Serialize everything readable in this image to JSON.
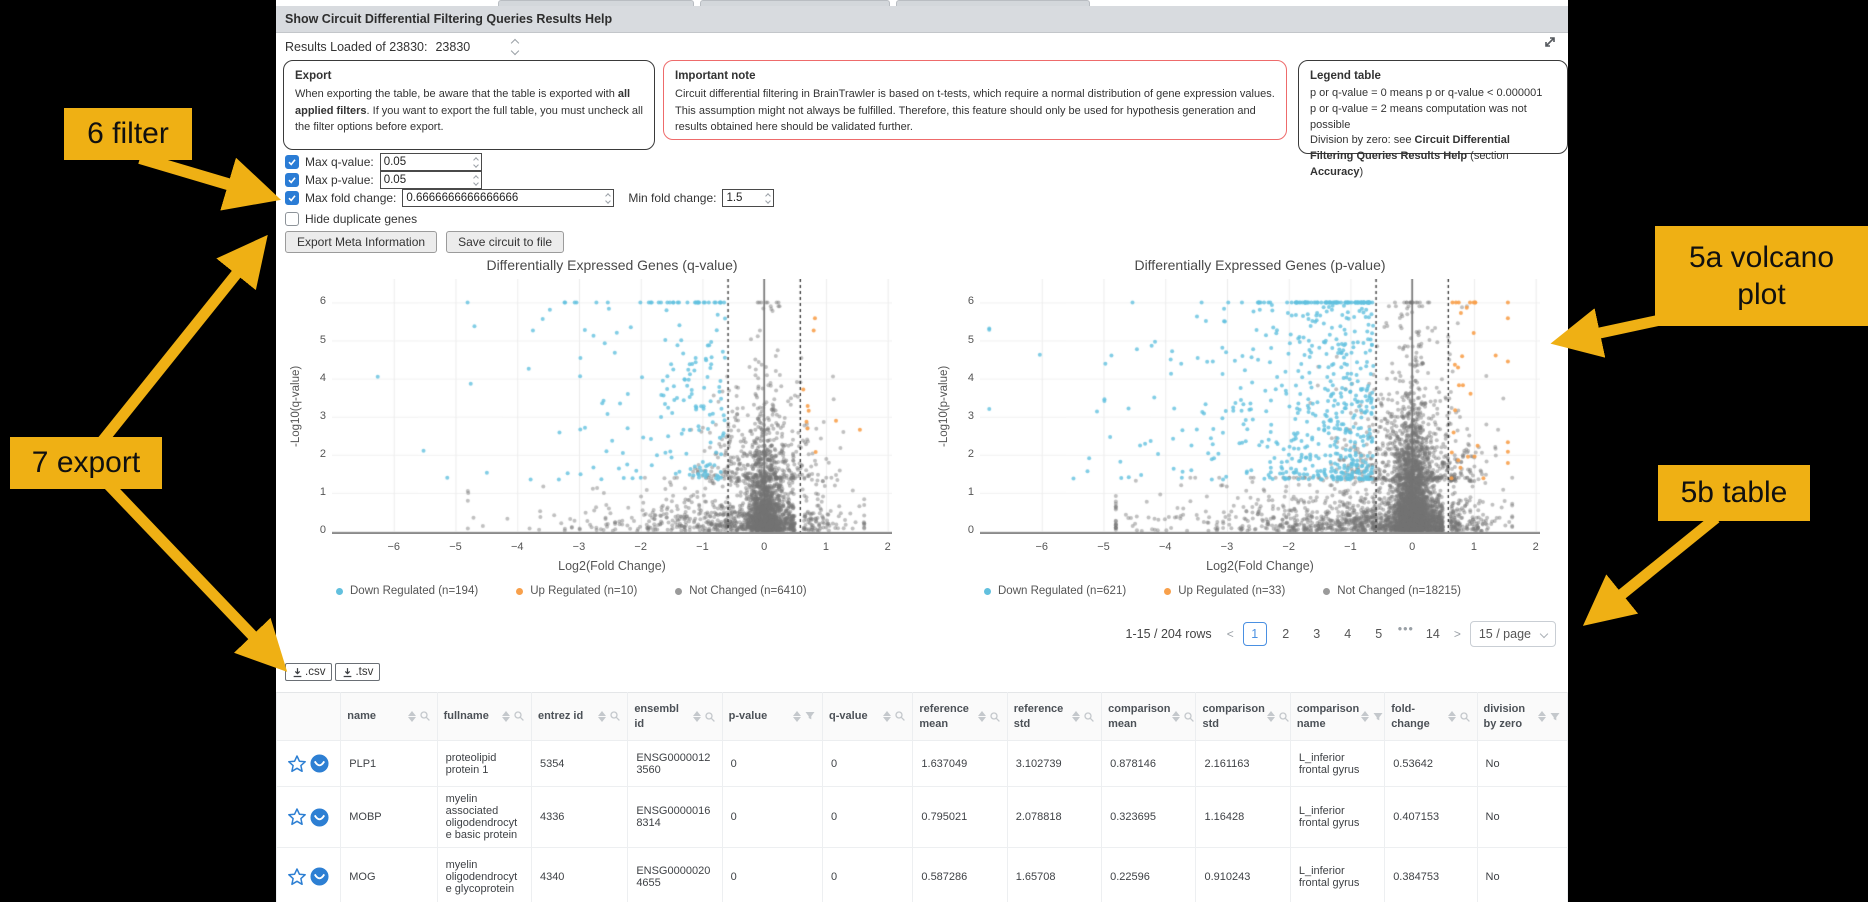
{
  "header": {
    "title": "Show Circuit Differential Filtering Queries Results Help"
  },
  "results_loaded": {
    "label": "Results Loaded of 23830:",
    "value": "23830"
  },
  "panels": {
    "export": {
      "title": "Export",
      "body_1": "When exporting the table, be aware that the table is exported with ",
      "body_bold": "all applied filters",
      "body_2": ". If you want to export the full table, you must uncheck all the filter options before export."
    },
    "important_note": {
      "title": "Important note",
      "body": "Circuit differential filtering in BrainTrawler is based on t-tests, which require a normal distribution of gene expression values. This assumption might not always be fulfilled. Therefore, this feature should only be used for hypothesis generation and results obtained here should be validated further."
    },
    "legend_table": {
      "title": "Legend table",
      "line1": "p or q-value = 0 means p or q-value < 0.000001",
      "line2": "p or q-value = 2 means computation was not possible",
      "line3_1": "Division by zero: see ",
      "line3_bold1": "Circuit Differential Filtering Queries Results Help",
      "line3_2": " (section ",
      "line3_bold2": "Accuracy",
      "line3_3": ")"
    }
  },
  "filters": {
    "max_q": {
      "label": "Max q-value:",
      "value": "0.05",
      "checked": true
    },
    "max_p": {
      "label": "Max p-value:",
      "value": "0.05",
      "checked": true
    },
    "max_fold": {
      "label": "Max fold change:",
      "value": "0.6666666666666666",
      "checked": true
    },
    "min_fold": {
      "label": "Min fold change:",
      "value": "1.5"
    },
    "hide_duplicates": {
      "label": "Hide duplicate genes",
      "checked": false
    }
  },
  "buttons": {
    "export_meta": "Export Meta Information",
    "save_circuit": "Save circuit to file",
    "csv": ".csv",
    "tsv": ".tsv"
  },
  "chart_data": [
    {
      "type": "scatter",
      "title": "Differentially Expressed Genes (q-value)",
      "xlabel": "Log2(Fold Change)",
      "ylabel": "-Log10(q-value)",
      "xlim": [
        -7,
        2.07
      ],
      "ylim": [
        0,
        6.3
      ],
      "xticks": [
        -6,
        -5,
        -4,
        -3,
        -2,
        -1,
        0,
        1,
        2
      ],
      "yticks": [
        0,
        1,
        2,
        3,
        4,
        5,
        6
      ],
      "grid": true,
      "legend_position": "bottom",
      "threshold_lines_x": [
        -0.585,
        0.585
      ],
      "zero_line_x": 0,
      "series": [
        {
          "name": "Down Regulated (n=194)",
          "n": 194,
          "color": "#62c0de"
        },
        {
          "name": "Up Regulated (n=10)",
          "n": 10,
          "color": "#f8a04b"
        },
        {
          "name": "Not Changed (n=6410)",
          "n": 6410,
          "color": "#9a9a9a"
        }
      ]
    },
    {
      "type": "scatter",
      "title": "Differentially Expressed Genes (p-value)",
      "xlabel": "Log2(Fold Change)",
      "ylabel": "-Log10(p-value)",
      "xlim": [
        -7,
        2.07
      ],
      "ylim": [
        0,
        6.3
      ],
      "xticks": [
        -6,
        -5,
        -4,
        -3,
        -2,
        -1,
        0,
        1,
        2
      ],
      "yticks": [
        0,
        1,
        2,
        3,
        4,
        5,
        6
      ],
      "grid": true,
      "legend_position": "bottom",
      "threshold_lines_x": [
        -0.585,
        0.585
      ],
      "zero_line_x": 0,
      "series": [
        {
          "name": "Down Regulated (n=621)",
          "n": 621,
          "color": "#62c0de"
        },
        {
          "name": "Up Regulated (n=33)",
          "n": 33,
          "color": "#f8a04b"
        },
        {
          "name": "Not Changed (n=18215)",
          "n": 18215,
          "color": "#9a9a9a"
        }
      ]
    }
  ],
  "pagination": {
    "range": "1-15 / 204 rows",
    "prev": "<",
    "next": ">",
    "pages": [
      "1",
      "2",
      "3",
      "4",
      "5",
      "•••",
      "14"
    ],
    "active": "1",
    "page_size": "15 / page"
  },
  "table": {
    "columns": [
      {
        "key": "icons",
        "label": "",
        "icon": ""
      },
      {
        "key": "name",
        "label": "name",
        "icon": "search"
      },
      {
        "key": "fullname",
        "label": "fullname",
        "icon": "search"
      },
      {
        "key": "entrez_id",
        "label": "entrez id",
        "icon": "search"
      },
      {
        "key": "ensembl_id",
        "label": "ensembl id",
        "icon": "search"
      },
      {
        "key": "p_value",
        "label": "p-value",
        "icon": "filter"
      },
      {
        "key": "q_value",
        "label": "q-value",
        "icon": "search"
      },
      {
        "key": "reference_mean",
        "label": "reference mean",
        "icon": "search"
      },
      {
        "key": "reference_std",
        "label": "reference std",
        "icon": "search"
      },
      {
        "key": "comparison_mean",
        "label": "comparison mean",
        "icon": "search"
      },
      {
        "key": "comparison_std",
        "label": "comparison std",
        "icon": "search"
      },
      {
        "key": "comparison_name",
        "label": "comparison name",
        "icon": "filter"
      },
      {
        "key": "fold_change",
        "label": "fold-change",
        "icon": "search"
      },
      {
        "key": "division_by_zero",
        "label": "division by zero",
        "icon": "filter"
      }
    ],
    "rows": [
      [
        "PLP1",
        "proteolipid protein 1",
        "5354",
        "ENSG00000123560",
        "0",
        "0",
        "1.637049",
        "3.102739",
        "0.878146",
        "2.161163",
        "L_inferior frontal gyrus",
        "0.53642",
        "No"
      ],
      [
        "MOBP",
        "myelin associated oligodendrocyte basic protein",
        "4336",
        "ENSG00000168314",
        "0",
        "0",
        "0.795021",
        "2.078818",
        "0.323695",
        "1.16428",
        "L_inferior frontal gyrus",
        "0.407153",
        "No"
      ],
      [
        "MOG",
        "myelin oligodendrocyte glycoprotein",
        "4340",
        "ENSG00000204655",
        "0",
        "0",
        "0.587286",
        "1.65708",
        "0.22596",
        "0.910243",
        "L_inferior frontal gyrus",
        "0.384753",
        "No"
      ]
    ]
  },
  "annotations": {
    "color": "#efb014",
    "filter_label": "6 filter",
    "export_label": "7 export",
    "volcano_label_line1": "5a volcano",
    "volcano_label_line2": "plot",
    "table_label": "5b table"
  }
}
